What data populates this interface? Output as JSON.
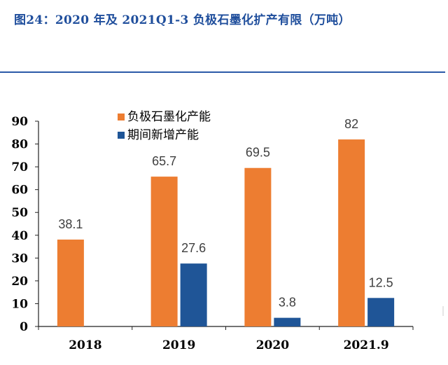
{
  "header": {
    "figure_title": "图24：2020 年及 2021Q1-3 负极石墨化扩产有限（万吨）"
  },
  "colors": {
    "title": "#1f4e9c",
    "rule": "#2b5aa8",
    "series_capacity": "#ed7d31",
    "series_new": "#1f5597"
  },
  "chart_data": {
    "type": "bar",
    "categories": [
      "2018",
      "2019",
      "2020",
      "2021.9"
    ],
    "series": [
      {
        "name": "负极石墨化产能",
        "values": [
          38.1,
          65.7,
          69.5,
          82
        ],
        "labels": [
          "38.1",
          "65.7",
          "69.5",
          "82"
        ],
        "color": "#ed7d31"
      },
      {
        "name": "期间新增产能",
        "values": [
          null,
          27.6,
          3.8,
          12.5
        ],
        "labels": [
          "",
          "27.6",
          "3.8",
          "12.5"
        ],
        "color": "#1f5597"
      }
    ],
    "ylim": [
      0,
      90
    ],
    "yticks": [
      "0",
      "10",
      "20",
      "30",
      "40",
      "50",
      "60",
      "70",
      "80",
      "90"
    ],
    "xlabel": "",
    "ylabel": "",
    "legend_position": "top-center",
    "grid": false
  }
}
